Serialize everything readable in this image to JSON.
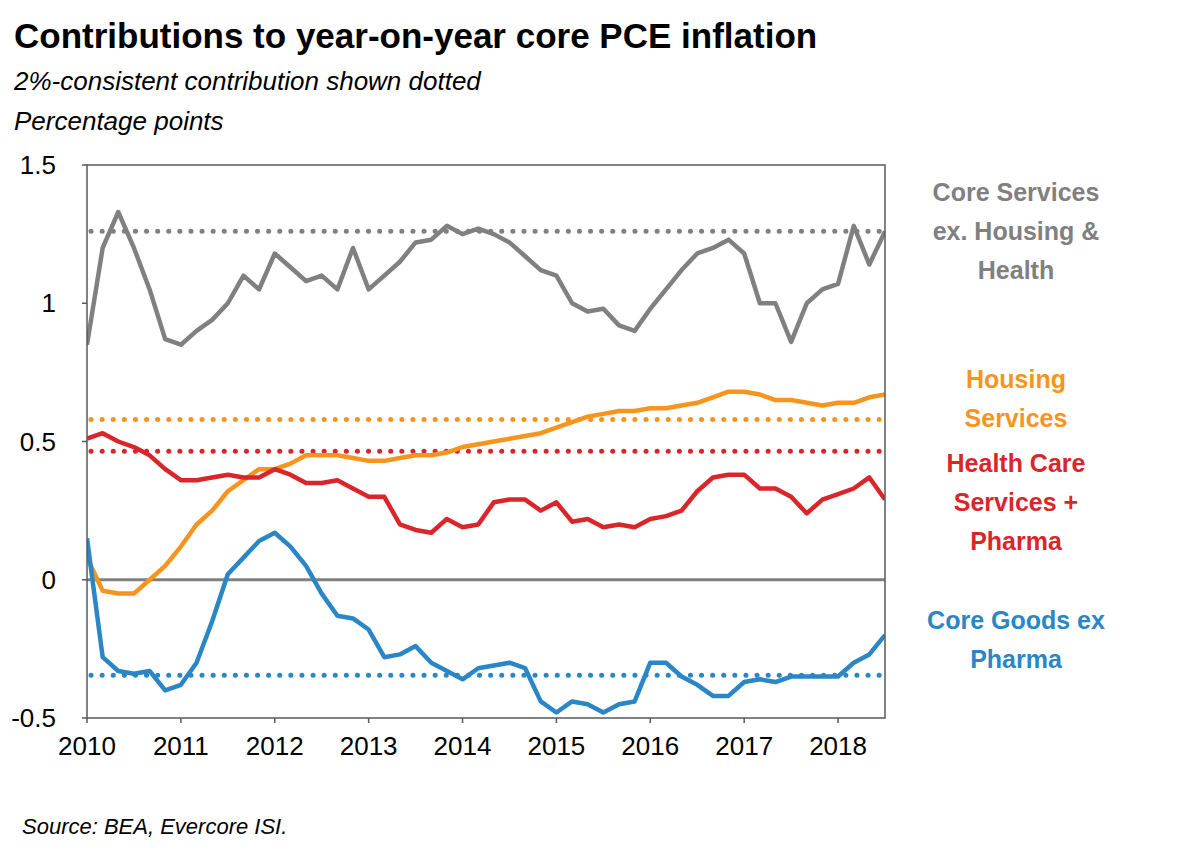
{
  "chart_data": {
    "type": "line",
    "title": "Contributions to year-on-year core PCE inflation",
    "subtitle": "2%-consistent contribution shown dotted",
    "ylabel": "Percentage points",
    "source": "Source: BEA, Evercore ISI.",
    "x": [
      2010,
      2010.167,
      2010.333,
      2010.5,
      2010.667,
      2010.833,
      2011,
      2011.167,
      2011.333,
      2011.5,
      2011.667,
      2011.833,
      2012,
      2012.167,
      2012.333,
      2012.5,
      2012.667,
      2012.833,
      2013,
      2013.167,
      2013.333,
      2013.5,
      2013.667,
      2013.833,
      2014,
      2014.167,
      2014.333,
      2014.5,
      2014.667,
      2014.833,
      2015,
      2015.167,
      2015.333,
      2015.5,
      2015.667,
      2015.833,
      2016,
      2016.167,
      2016.333,
      2016.5,
      2016.667,
      2016.833,
      2017,
      2017.167,
      2017.333,
      2017.5,
      2017.667,
      2017.833,
      2018,
      2018.167,
      2018.333,
      2018.5
    ],
    "xlim": [
      2010,
      2018.5
    ],
    "xticks": [
      2010,
      2011,
      2012,
      2013,
      2014,
      2015,
      2016,
      2017,
      2018
    ],
    "ylim": [
      -0.5,
      1.5
    ],
    "yticks": [
      -0.5,
      0,
      0.5,
      1,
      1.5
    ],
    "grid": false,
    "series": [
      {
        "name": "Core Services ex. Housing & Health",
        "color": "#808080",
        "line_style": "solid",
        "target": 1.26,
        "values": [
          0.85,
          1.2,
          1.33,
          1.2,
          1.05,
          0.87,
          0.85,
          0.9,
          0.94,
          1.0,
          1.1,
          1.05,
          1.18,
          1.13,
          1.08,
          1.1,
          1.05,
          1.2,
          1.05,
          1.1,
          1.15,
          1.22,
          1.23,
          1.28,
          1.25,
          1.27,
          1.25,
          1.22,
          1.17,
          1.12,
          1.1,
          1.0,
          0.97,
          0.98,
          0.92,
          0.9,
          0.98,
          1.05,
          1.12,
          1.18,
          1.2,
          1.23,
          1.18,
          1.0,
          1.0,
          0.86,
          1.0,
          1.05,
          1.07,
          1.28,
          1.14,
          1.26
        ]
      },
      {
        "name": "Housing Services",
        "color": "#f7941d",
        "line_style": "solid",
        "target": 0.58,
        "values": [
          0.08,
          -0.04,
          -0.05,
          -0.05,
          0.0,
          0.05,
          0.12,
          0.2,
          0.25,
          0.32,
          0.36,
          0.4,
          0.4,
          0.42,
          0.45,
          0.45,
          0.45,
          0.44,
          0.43,
          0.43,
          0.44,
          0.45,
          0.45,
          0.46,
          0.48,
          0.49,
          0.5,
          0.51,
          0.52,
          0.53,
          0.55,
          0.57,
          0.59,
          0.6,
          0.61,
          0.61,
          0.62,
          0.62,
          0.63,
          0.64,
          0.66,
          0.68,
          0.68,
          0.67,
          0.65,
          0.65,
          0.64,
          0.63,
          0.64,
          0.64,
          0.66,
          0.67
        ]
      },
      {
        "name": "Health Care Services + Pharma",
        "color": "#d9262b",
        "line_style": "solid",
        "target": 0.465,
        "values": [
          0.51,
          0.53,
          0.5,
          0.48,
          0.45,
          0.4,
          0.36,
          0.36,
          0.37,
          0.38,
          0.37,
          0.37,
          0.4,
          0.38,
          0.35,
          0.35,
          0.36,
          0.33,
          0.3,
          0.3,
          0.2,
          0.18,
          0.17,
          0.22,
          0.19,
          0.2,
          0.28,
          0.29,
          0.29,
          0.25,
          0.28,
          0.21,
          0.22,
          0.19,
          0.2,
          0.19,
          0.22,
          0.23,
          0.25,
          0.32,
          0.37,
          0.38,
          0.38,
          0.33,
          0.33,
          0.3,
          0.24,
          0.29,
          0.31,
          0.33,
          0.37,
          0.29
        ]
      },
      {
        "name": "Core Goods ex Pharma",
        "color": "#2a86c5",
        "line_style": "solid",
        "target": -0.345,
        "values": [
          0.15,
          -0.28,
          -0.33,
          -0.34,
          -0.33,
          -0.4,
          -0.38,
          -0.3,
          -0.15,
          0.02,
          0.08,
          0.14,
          0.17,
          0.12,
          0.05,
          -0.05,
          -0.13,
          -0.14,
          -0.18,
          -0.28,
          -0.27,
          -0.24,
          -0.3,
          -0.33,
          -0.36,
          -0.32,
          -0.31,
          -0.3,
          -0.32,
          -0.44,
          -0.48,
          -0.44,
          -0.45,
          -0.48,
          -0.45,
          -0.44,
          -0.3,
          -0.3,
          -0.35,
          -0.38,
          -0.42,
          -0.42,
          -0.37,
          -0.36,
          -0.37,
          -0.35,
          -0.35,
          -0.35,
          -0.35,
          -0.3,
          -0.27,
          -0.2
        ]
      }
    ]
  }
}
